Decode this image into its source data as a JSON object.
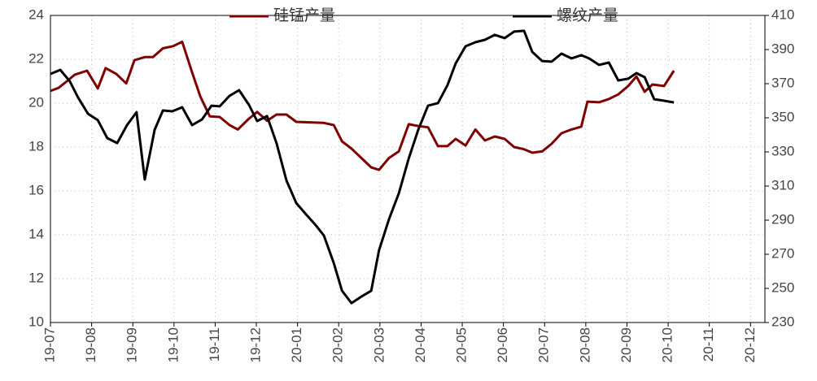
{
  "chart_data": {
    "type": "line",
    "legend": "upper center",
    "grid": true,
    "xlim": [
      0,
      17.35
    ],
    "xticks": [
      {
        "value": 0,
        "label": "19-07"
      },
      {
        "value": 1,
        "label": "19-08"
      },
      {
        "value": 2,
        "label": "19-09"
      },
      {
        "value": 3,
        "label": "19-10"
      },
      {
        "value": 4,
        "label": "19-11"
      },
      {
        "value": 5,
        "label": "19-12"
      },
      {
        "value": 6,
        "label": "20-01"
      },
      {
        "value": 7,
        "label": "20-02"
      },
      {
        "value": 8,
        "label": "20-03"
      },
      {
        "value": 9,
        "label": "20-04"
      },
      {
        "value": 10,
        "label": "20-05"
      },
      {
        "value": 11,
        "label": "20-06"
      },
      {
        "value": 12,
        "label": "20-07"
      },
      {
        "value": 13,
        "label": "20-08"
      },
      {
        "value": 14,
        "label": "20-09"
      },
      {
        "value": 15,
        "label": "20-10"
      },
      {
        "value": 16,
        "label": "20-11"
      },
      {
        "value": 17,
        "label": "20-12"
      }
    ],
    "ylim": [
      10,
      24
    ],
    "yticks": [
      10,
      12,
      14,
      16,
      18,
      20,
      22,
      24
    ],
    "y2lim": [
      230,
      410
    ],
    "y2ticks": [
      230,
      250,
      270,
      290,
      310,
      330,
      350,
      370,
      390,
      410
    ],
    "series": [
      {
        "name": "硅锰产量",
        "color": "#7f0000",
        "axis": "y",
        "x": [
          0,
          0.2,
          0.4,
          0.59,
          0.89,
          1.15,
          1.34,
          1.6,
          1.84,
          2.04,
          2.29,
          2.49,
          2.73,
          2.98,
          3.2,
          3.44,
          3.64,
          3.87,
          4.11,
          4.35,
          4.55,
          4.8,
          5.02,
          5.26,
          5.49,
          5.73,
          5.97,
          6.64,
          6.88,
          7.08,
          7.31,
          7.55,
          7.79,
          7.98,
          8.22,
          8.46,
          8.7,
          8.93,
          9.17,
          9.41,
          9.64,
          9.84,
          10.08,
          10.32,
          10.55,
          10.79,
          11.03,
          11.26,
          11.5,
          11.7,
          11.94,
          12.17,
          12.41,
          12.65,
          12.89,
          13.04,
          13.32,
          13.56,
          13.79,
          14.03,
          14.23,
          14.43,
          14.62,
          14.9,
          15.14
        ],
        "values": [
          20.56,
          20.7,
          21.0,
          21.3,
          21.48,
          20.67,
          21.6,
          21.33,
          20.9,
          21.96,
          22.1,
          22.1,
          22.5,
          22.6,
          22.8,
          21.4,
          20.3,
          19.4,
          19.37,
          19.0,
          18.8,
          19.26,
          19.6,
          19.2,
          19.48,
          19.48,
          19.15,
          19.1,
          19.0,
          18.26,
          17.93,
          17.5,
          17.07,
          16.96,
          17.5,
          17.8,
          19.04,
          18.96,
          18.9,
          18.04,
          18.04,
          18.37,
          18.07,
          18.8,
          18.3,
          18.48,
          18.37,
          18.0,
          17.9,
          17.74,
          17.8,
          18.15,
          18.63,
          18.8,
          18.93,
          20.07,
          20.04,
          20.19,
          20.4,
          20.78,
          21.22,
          20.52,
          20.85,
          20.78,
          21.48
        ]
      },
      {
        "name": "螺纹产量",
        "color": "#000000",
        "axis": "y2",
        "x": [
          0,
          0.24,
          0.47,
          0.67,
          0.91,
          1.15,
          1.38,
          1.62,
          1.86,
          2.09,
          2.29,
          2.53,
          2.73,
          2.96,
          3.2,
          3.44,
          3.68,
          3.91,
          4.11,
          4.35,
          4.58,
          4.82,
          5.02,
          5.26,
          5.49,
          5.73,
          5.97,
          6.21,
          6.44,
          6.64,
          6.88,
          7.08,
          7.31,
          7.55,
          7.79,
          7.98,
          8.22,
          8.46,
          8.7,
          8.93,
          9.17,
          9.41,
          9.64,
          9.84,
          10.08,
          10.32,
          10.55,
          10.79,
          11.03,
          11.26,
          11.5,
          11.7,
          11.94,
          12.17,
          12.41,
          12.65,
          12.89,
          13.08,
          13.32,
          13.56,
          13.79,
          14.03,
          14.23,
          14.43,
          14.66,
          14.9,
          15.14
        ],
        "values": [
          375.7,
          378.1,
          371.4,
          361.9,
          352.4,
          348.6,
          338.1,
          335.2,
          345.7,
          353.3,
          313.8,
          342.9,
          354.3,
          353.8,
          356.2,
          345.7,
          349.0,
          357.1,
          356.7,
          362.9,
          366.2,
          357.6,
          348.1,
          351.0,
          335.2,
          313.3,
          300.0,
          293.3,
          287.1,
          281.0,
          264.8,
          248.6,
          241.4,
          245.2,
          248.6,
          272.4,
          290.5,
          305.7,
          326.2,
          342.9,
          357.1,
          358.6,
          369.0,
          381.9,
          391.9,
          394.3,
          395.7,
          398.6,
          396.7,
          400.5,
          401.0,
          388.6,
          383.3,
          382.9,
          387.6,
          384.8,
          386.7,
          384.8,
          381.0,
          382.4,
          371.9,
          372.9,
          376.2,
          373.8,
          360.9,
          360.0,
          359.0
        ]
      }
    ]
  }
}
